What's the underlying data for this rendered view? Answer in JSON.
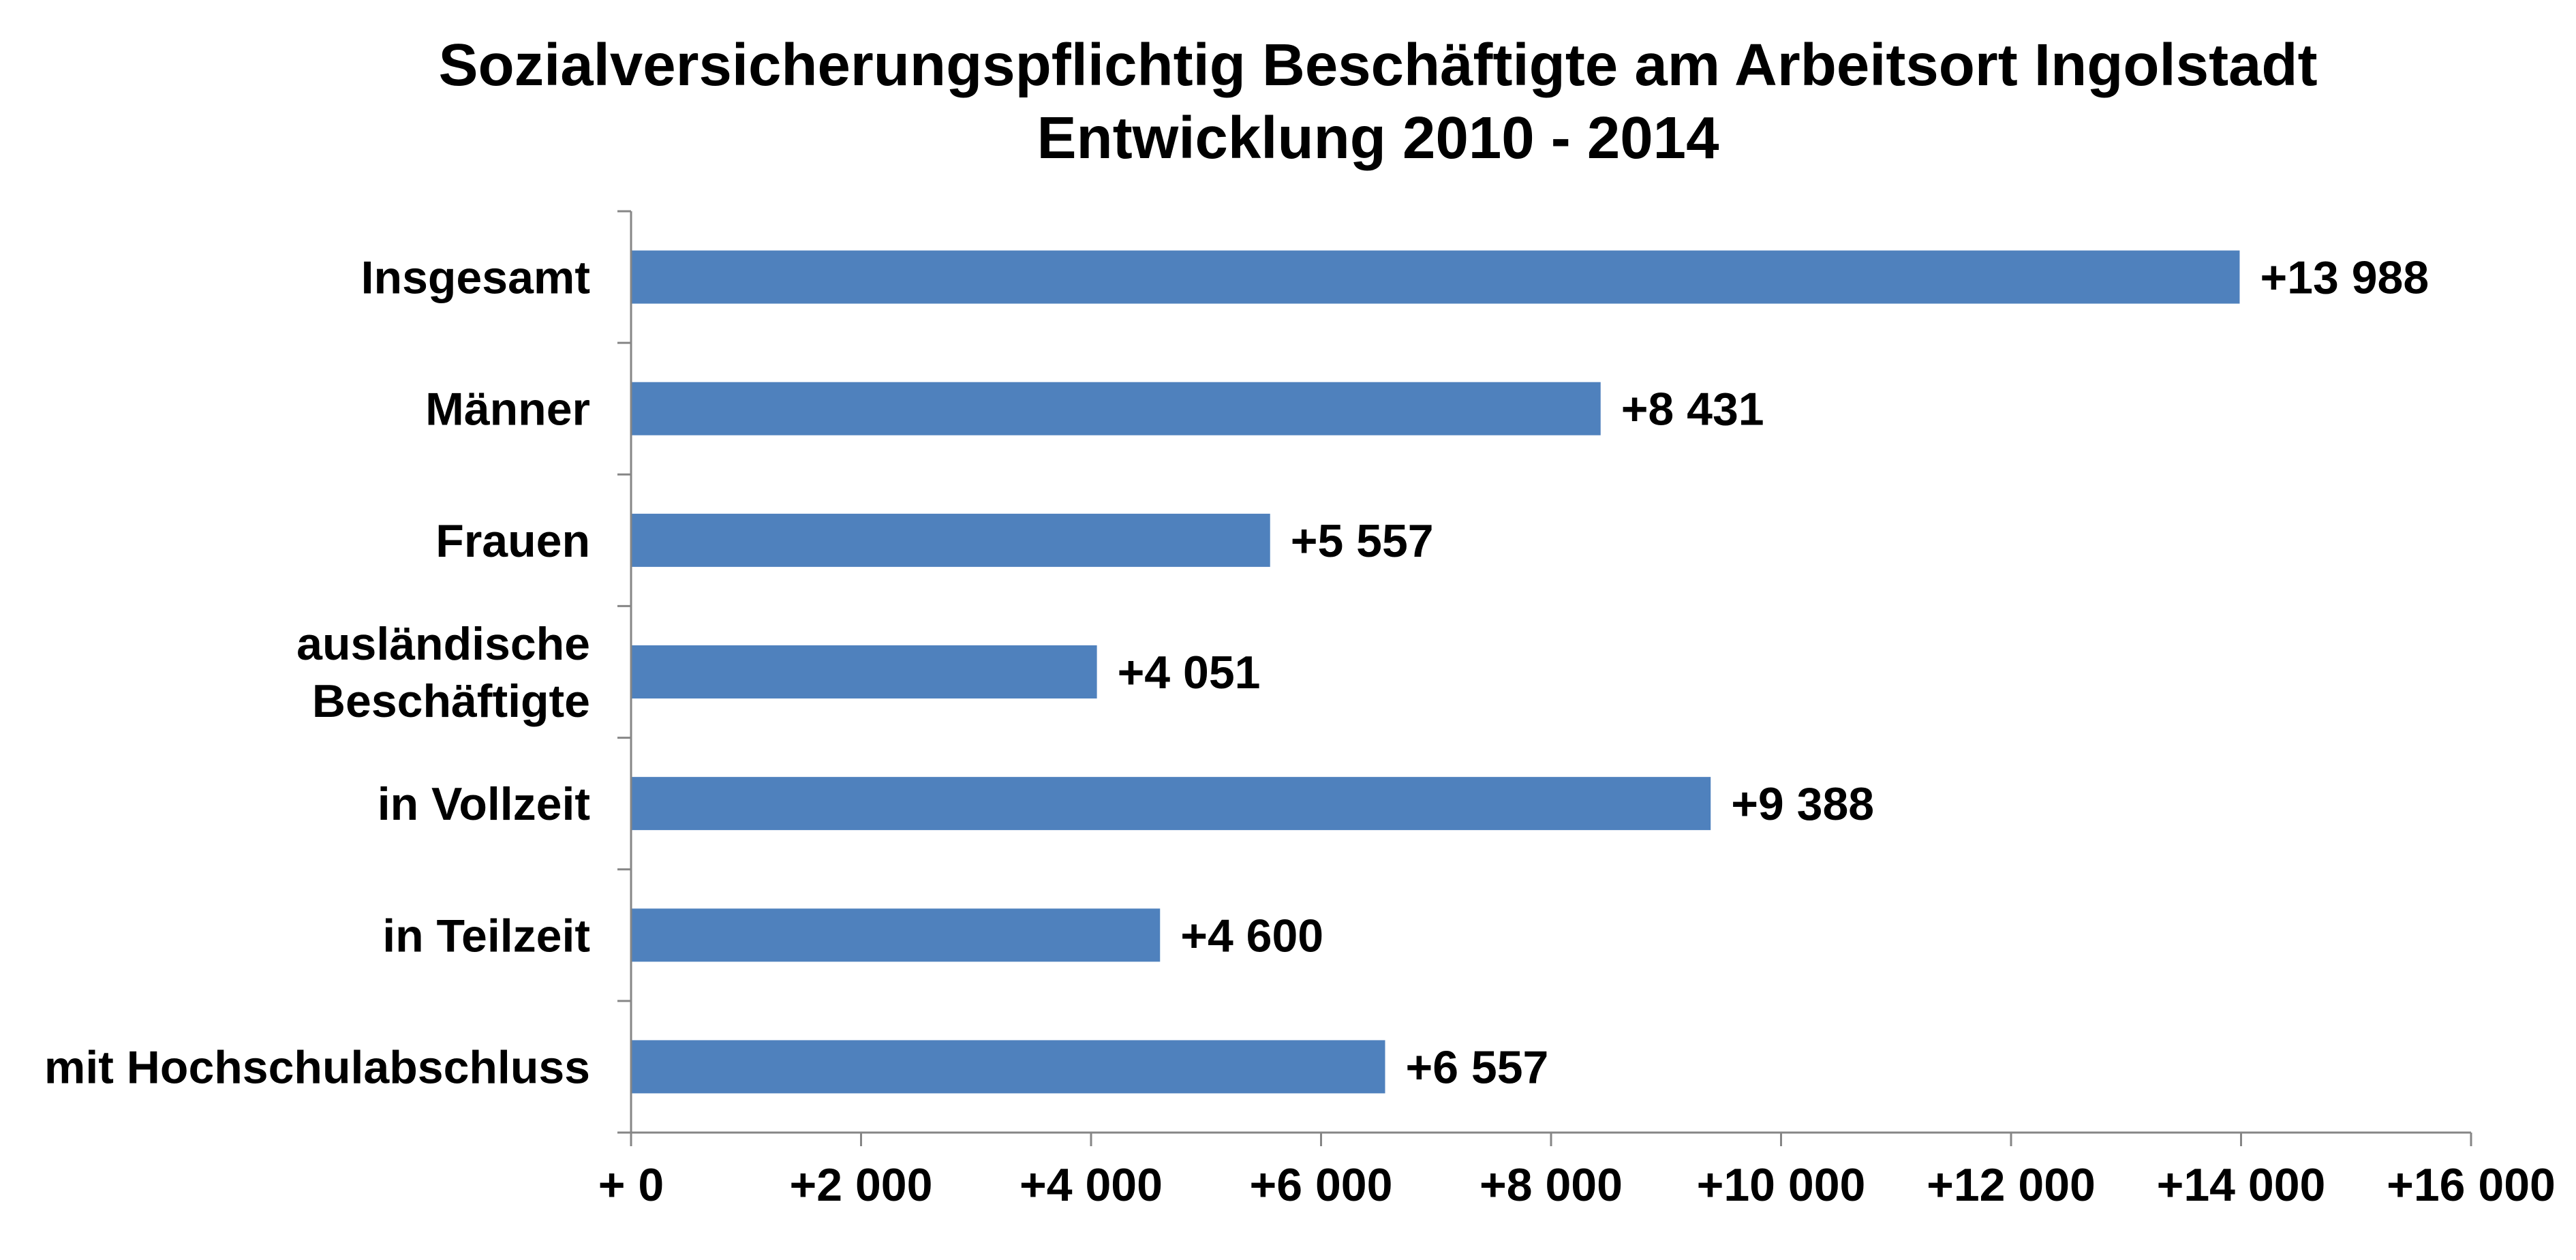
{
  "chart_data": {
    "type": "bar",
    "orientation": "horizontal",
    "title": "Sozialversicherungspflichtig Beschäftigte am Arbeitsort Ingolstadt",
    "subtitle": "Entwicklung  2010 -  2014",
    "xlabel": "",
    "ylabel": "",
    "categories": [
      [
        "Insgesamt"
      ],
      [
        "Männer"
      ],
      [
        "Frauen"
      ],
      [
        "ausländische",
        "Beschäftigte"
      ],
      [
        "in Vollzeit"
      ],
      [
        "in Teilzeit"
      ],
      [
        "mit Hochschulabschluss"
      ]
    ],
    "values": [
      13988,
      8431,
      5557,
      4051,
      9388,
      4600,
      6557
    ],
    "value_labels": [
      "+13 988",
      "+8 431",
      "+5 557",
      "+4 051",
      "+9 388",
      "+4 600",
      "+6 557"
    ],
    "xlim": [
      0,
      16000
    ],
    "x_ticks": [
      0,
      2000,
      4000,
      6000,
      8000,
      10000,
      12000,
      14000,
      16000
    ],
    "x_tick_labels": [
      "+ 0",
      "+2 000",
      "+4 000",
      "+6 000",
      "+8 000",
      "+10 000",
      "+12 000",
      "+14 000",
      "+16 000"
    ],
    "grid": false,
    "legend": "none",
    "colors": {
      "bar": "#4f81bd",
      "axis": "#868686",
      "text": "#000000"
    }
  }
}
